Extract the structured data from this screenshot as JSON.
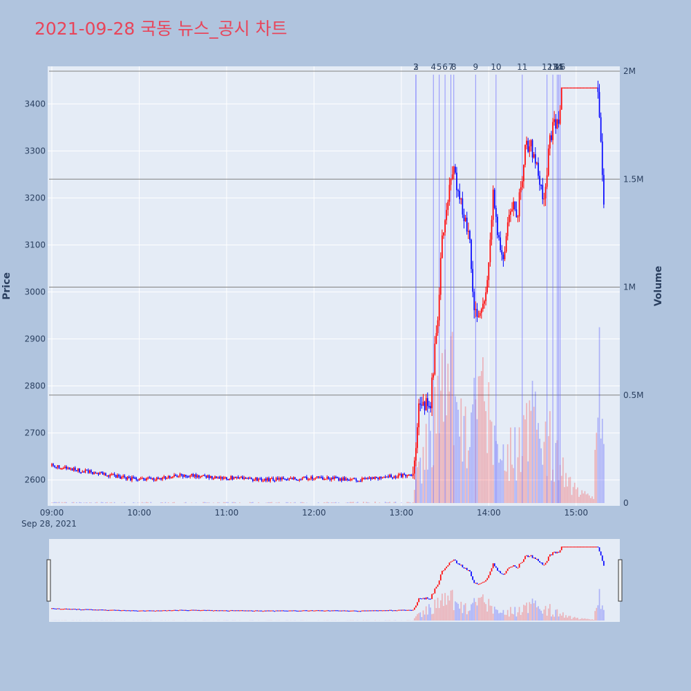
{
  "title": "2021-09-28 국동 뉴스_공시 차트",
  "colors": {
    "up": "#ff0000",
    "down": "#0000ff",
    "background": "#b0c4de",
    "plot": "#e5ecf6",
    "title": "#e8455a"
  },
  "chart_data": {
    "type": "candlestick",
    "ylabel": "Price",
    "y2label": "Volume",
    "ylim": [
      2545,
      3480
    ],
    "y2lim": [
      0,
      2000000
    ],
    "price_ticks": [
      "2600",
      "2700",
      "2800",
      "2900",
      "3000",
      "3100",
      "3200",
      "3300",
      "3400"
    ],
    "volume_ticks": [
      "0",
      "0.5M",
      "1M",
      "1.5M",
      "2M"
    ],
    "time_ticks": [
      "09:00",
      "10:00",
      "11:00",
      "12:00",
      "13:00",
      "14:00",
      "15:00"
    ],
    "date_label": "Sep 28, 2021",
    "x_range": [
      "09:00",
      "15:30"
    ],
    "horizontal_lines_volume": [
      500000,
      1000000,
      1500000,
      2000000
    ],
    "news_markers": [
      {
        "label": "2",
        "time": "13:10"
      },
      {
        "label": "3",
        "time": "13:10"
      },
      {
        "label": "4",
        "time": "13:22"
      },
      {
        "label": "5",
        "time": "13:26"
      },
      {
        "label": "6",
        "time": "13:30"
      },
      {
        "label": "7",
        "time": "13:34"
      },
      {
        "label": "8",
        "time": "13:36"
      },
      {
        "label": "9",
        "time": "13:51"
      },
      {
        "label": "10",
        "time": "14:05"
      },
      {
        "label": "11",
        "time": "14:23"
      },
      {
        "label": "12",
        "time": "14:40"
      },
      {
        "label": "13",
        "time": "14:44"
      },
      {
        "label": "14",
        "time": "14:47"
      },
      {
        "label": "15",
        "time": "14:48"
      },
      {
        "label": "16",
        "time": "14:49"
      }
    ],
    "price_path": [
      [
        "09:00",
        2630
      ],
      [
        "09:30",
        2615
      ],
      [
        "10:00",
        2600
      ],
      [
        "10:30",
        2610
      ],
      [
        "11:00",
        2605
      ],
      [
        "11:30",
        2600
      ],
      [
        "12:00",
        2605
      ],
      [
        "12:30",
        2600
      ],
      [
        "13:00",
        2610
      ],
      [
        "13:08",
        2612
      ],
      [
        "13:10",
        2660
      ],
      [
        "13:12",
        2770
      ],
      [
        "13:15",
        2760
      ],
      [
        "13:20",
        2770
      ],
      [
        "13:25",
        2950
      ],
      [
        "13:28",
        3120
      ],
      [
        "13:32",
        3200
      ],
      [
        "13:35",
        3260
      ],
      [
        "13:38",
        3230
      ],
      [
        "13:42",
        3180
      ],
      [
        "13:47",
        3100
      ],
      [
        "13:50",
        2960
      ],
      [
        "13:53",
        2940
      ],
      [
        "13:58",
        2990
      ],
      [
        "14:00",
        3050
      ],
      [
        "14:03",
        3200
      ],
      [
        "14:06",
        3120
      ],
      [
        "14:10",
        3080
      ],
      [
        "14:15",
        3180
      ],
      [
        "14:20",
        3170
      ],
      [
        "14:25",
        3300
      ],
      [
        "14:28",
        3320
      ],
      [
        "14:32",
        3280
      ],
      [
        "14:35",
        3220
      ],
      [
        "14:38",
        3190
      ],
      [
        "14:42",
        3320
      ],
      [
        "14:45",
        3370
      ],
      [
        "14:48",
        3350
      ],
      [
        "14:50",
        3435
      ],
      [
        "15:00",
        3435
      ],
      [
        "15:15",
        3435
      ],
      [
        "15:17",
        3330
      ],
      [
        "15:19",
        3175
      ]
    ],
    "volume_profile": [
      [
        "09:00",
        3000
      ],
      [
        "12:00",
        3000
      ],
      [
        "13:08",
        5000
      ],
      [
        "13:12",
        160000
      ],
      [
        "13:20",
        320000
      ],
      [
        "13:28",
        650000
      ],
      [
        "13:35",
        520000
      ],
      [
        "13:45",
        260000
      ],
      [
        "13:55",
        480000
      ],
      [
        "14:05",
        230000
      ],
      [
        "14:20",
        220000
      ],
      [
        "14:30",
        380000
      ],
      [
        "14:40",
        300000
      ],
      [
        "14:50",
        150000
      ],
      [
        "15:00",
        50000
      ],
      [
        "15:12",
        25000
      ],
      [
        "15:18",
        800000
      ],
      [
        "15:20",
        40000
      ]
    ]
  }
}
